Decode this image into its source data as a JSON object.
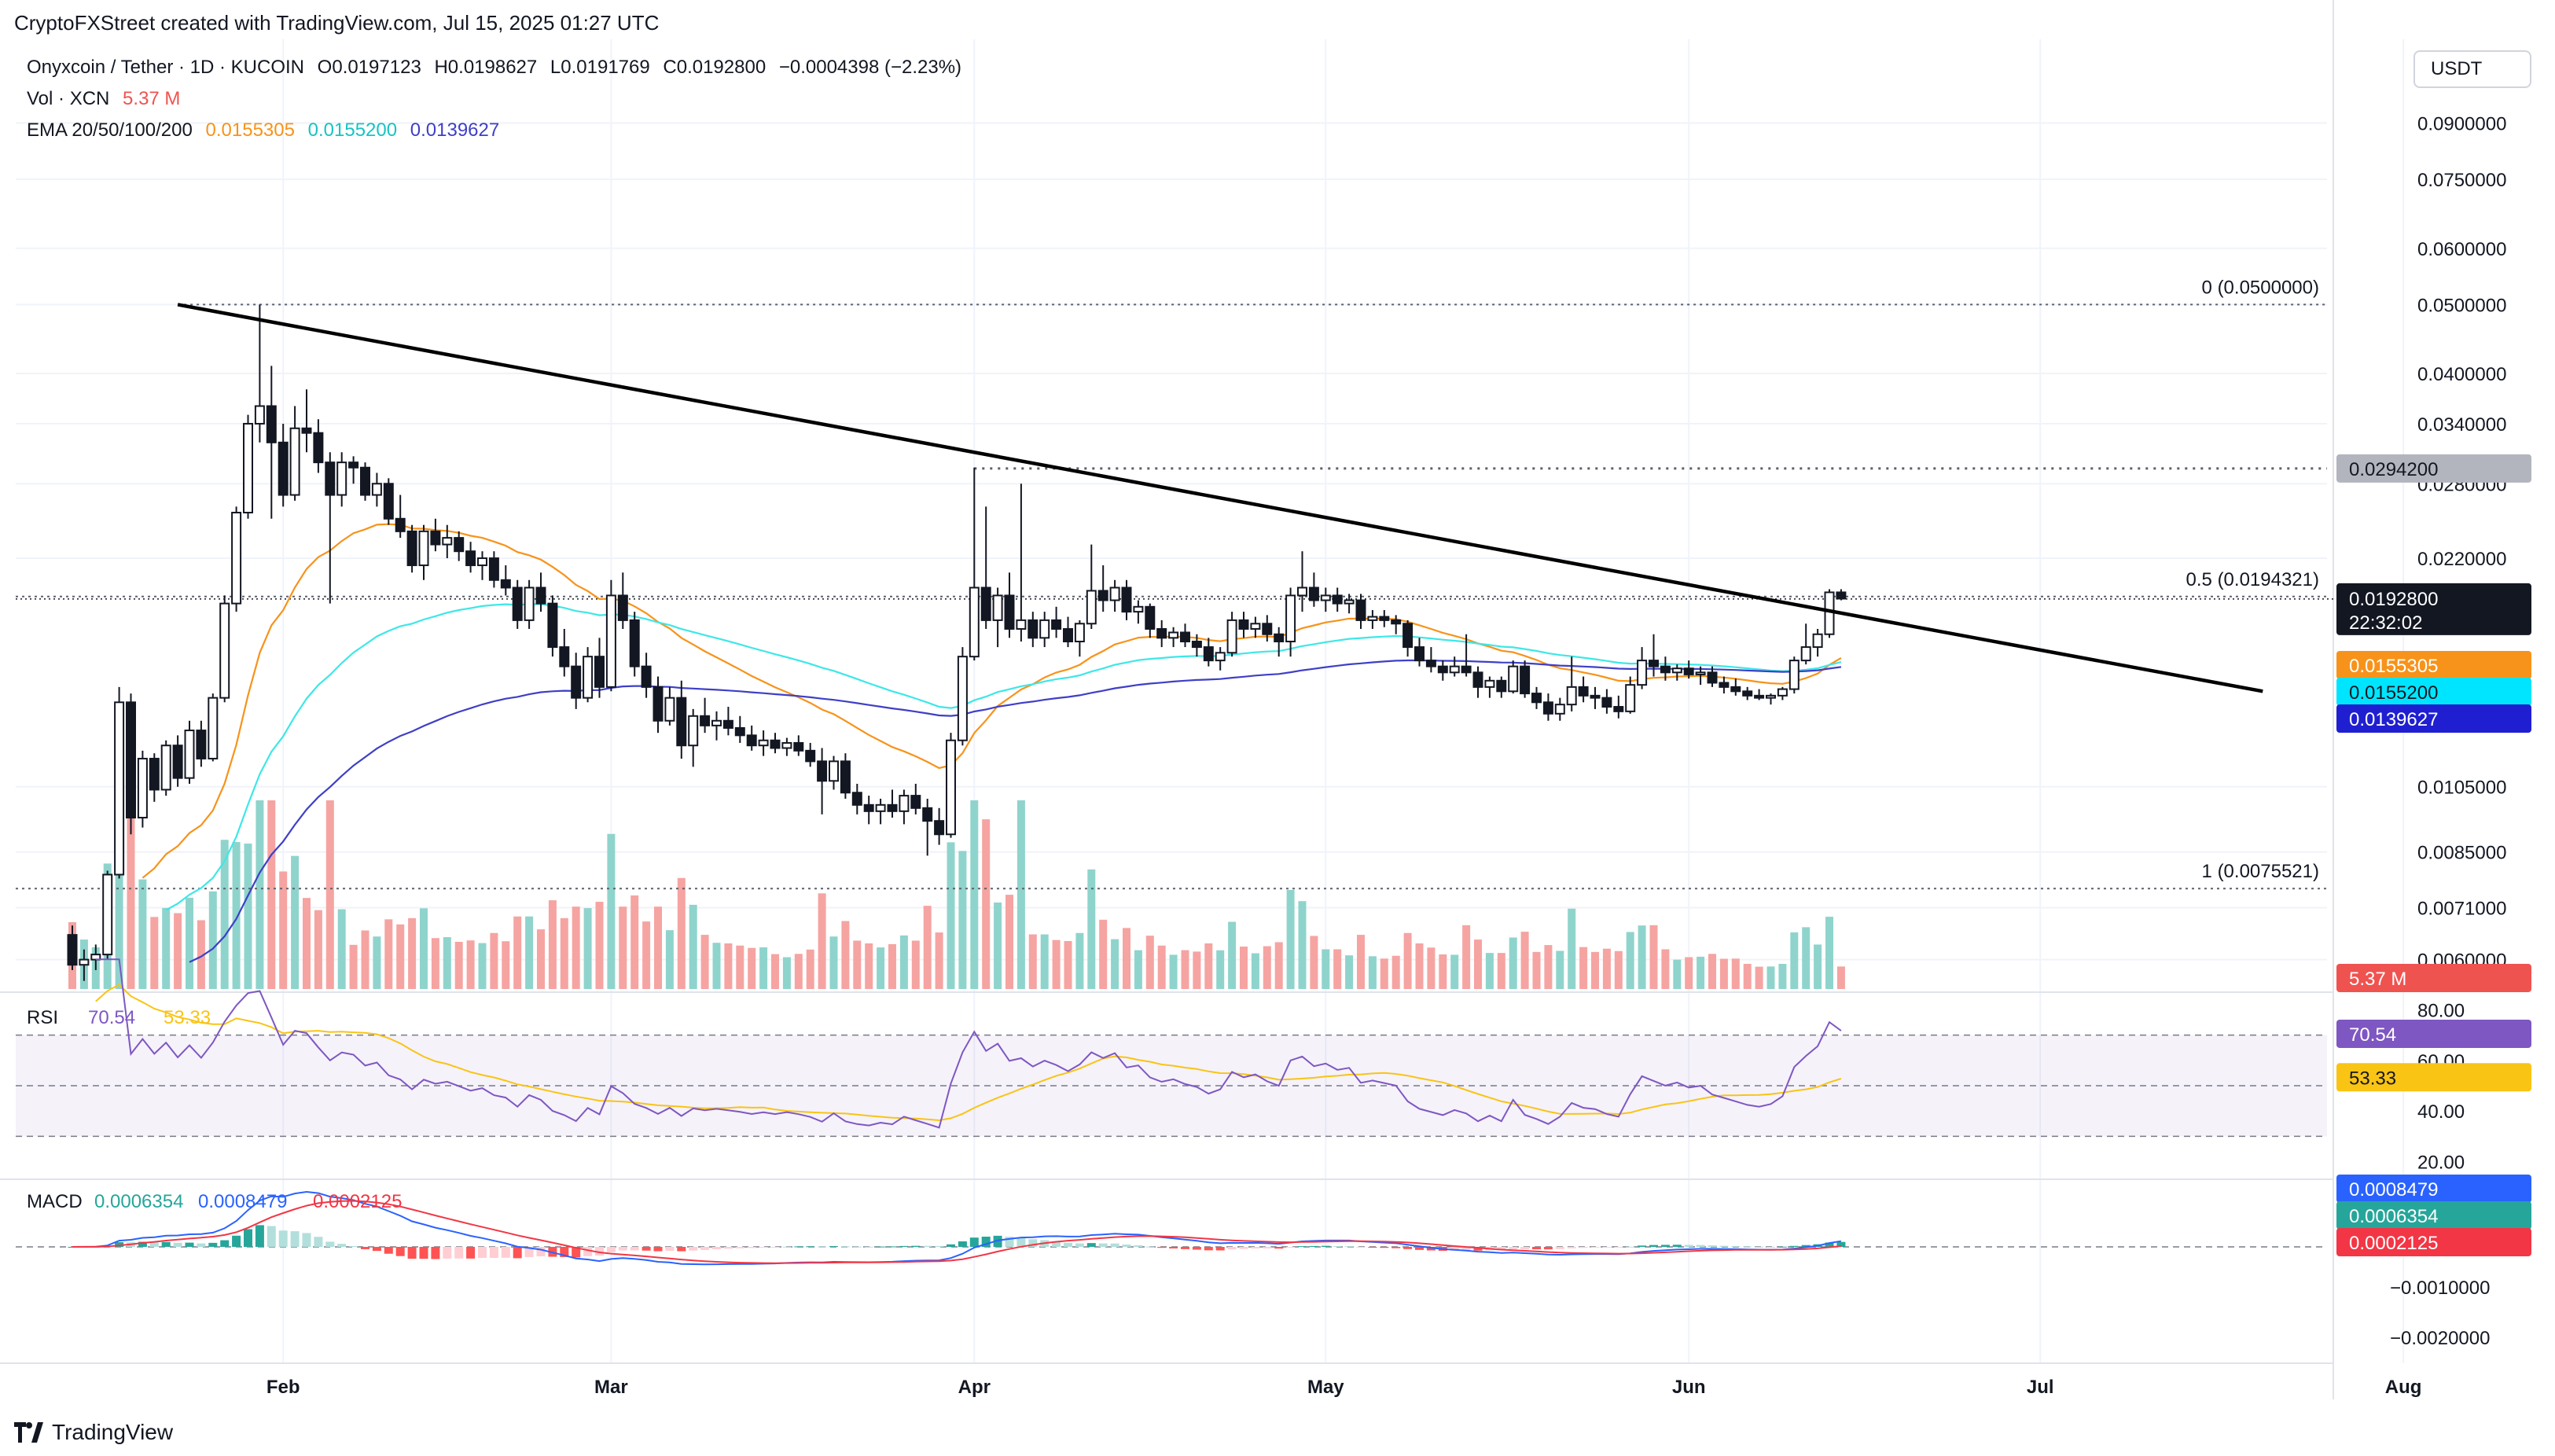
{
  "header": {
    "credit": "CryptoFXStreet created with TradingView.com, Jul 15, 2025 01:27 UTC",
    "currency_button": "USDT"
  },
  "legend": {
    "symbol": "Onyxcoin / Tether · 1D · KUCOIN",
    "open": "O0.0197123",
    "high": "H0.0198627",
    "low": "L0.0191769",
    "close": "C0.0192800",
    "change": "−0.0004398 (−2.23%)",
    "vol_label": "Vol · XCN",
    "vol_value": "5.37 M",
    "ema_label": "EMA 20/50/100/200",
    "ema20": "0.0155305",
    "ema50": "0.0155200",
    "ema100": "0.0139627"
  },
  "footer": {
    "brand": "TradingView"
  },
  "colors": {
    "up": "#26a69a",
    "down": "#ef5350",
    "ema20": "#f7931a",
    "ema50": "#3ee7e7",
    "ema100": "#3f3fc6",
    "rsi": "#7e57c2",
    "rsi_ma": "#f9c414",
    "macd": "#2962ff",
    "signal": "#f23645",
    "trendline": "#000000"
  },
  "chart_data": {
    "type": "candlestick",
    "title": "Onyxcoin / Tether · 1D · KUCOIN",
    "y_scale": "log",
    "x_ticks": [
      "Feb",
      "Mar",
      "Apr",
      "May",
      "Jun",
      "Jul",
      "Aug"
    ],
    "price_axis_ticks": [
      "0.0900000",
      "0.0750000",
      "0.0600000",
      "0.0500000",
      "0.0400000",
      "0.0340000",
      "0.0280000",
      "0.0220000",
      "0.0105000",
      "0.0085000",
      "0.0071000",
      "0.0060000"
    ],
    "price_axis_badges": {
      "resistance": "0.0294200",
      "last_price": "0.0192800",
      "countdown": "22:32:02",
      "ema20": "0.0155305",
      "ema50": "0.0155200",
      "ema100": "0.0139627",
      "volume": "5.37 M"
    },
    "fibonacci": [
      {
        "label": "0 (0.0500000)",
        "level": 0.05
      },
      {
        "label": "0.5 (0.0194321)",
        "level": 0.0194321
      },
      {
        "label": "1 (0.0075521)",
        "level": 0.0075521
      }
    ],
    "resistance_level": 0.02942,
    "trendline": {
      "start": [
        "Jan 23",
        0.05
      ],
      "end": [
        "Jul 20",
        0.0143
      ]
    },
    "candles_start": "Jan 14",
    "candles": [
      [
        0.0065,
        0.0067,
        0.0058,
        0.0059
      ],
      [
        0.0059,
        0.0062,
        0.0056,
        0.006
      ],
      [
        0.006,
        0.0063,
        0.0058,
        0.0061
      ],
      [
        0.0061,
        0.008,
        0.006,
        0.0079
      ],
      [
        0.0079,
        0.0145,
        0.0078,
        0.0138
      ],
      [
        0.0138,
        0.0142,
        0.009,
        0.0095
      ],
      [
        0.0095,
        0.0118,
        0.0092,
        0.0115
      ],
      [
        0.0115,
        0.0117,
        0.01,
        0.0104
      ],
      [
        0.0104,
        0.0122,
        0.0102,
        0.012
      ],
      [
        0.012,
        0.0124,
        0.0105,
        0.0108
      ],
      [
        0.0108,
        0.013,
        0.0106,
        0.0126
      ],
      [
        0.0126,
        0.013,
        0.0112,
        0.0115
      ],
      [
        0.0115,
        0.0142,
        0.0114,
        0.014
      ],
      [
        0.014,
        0.0195,
        0.0138,
        0.019
      ],
      [
        0.019,
        0.026,
        0.0185,
        0.0255
      ],
      [
        0.0255,
        0.035,
        0.025,
        0.034
      ],
      [
        0.034,
        0.05,
        0.032,
        0.036
      ],
      [
        0.036,
        0.041,
        0.025,
        0.032
      ],
      [
        0.032,
        0.034,
        0.026,
        0.027
      ],
      [
        0.027,
        0.036,
        0.0265,
        0.0335
      ],
      [
        0.0335,
        0.038,
        0.031,
        0.033
      ],
      [
        0.033,
        0.0345,
        0.029,
        0.03
      ],
      [
        0.03,
        0.031,
        0.019,
        0.027
      ],
      [
        0.027,
        0.031,
        0.026,
        0.03
      ],
      [
        0.03,
        0.0306,
        0.028,
        0.0295
      ],
      [
        0.0295,
        0.03,
        0.0265,
        0.027
      ],
      [
        0.027,
        0.029,
        0.026,
        0.028
      ],
      [
        0.028,
        0.0285,
        0.0245,
        0.025
      ],
      [
        0.025,
        0.027,
        0.0235,
        0.024
      ],
      [
        0.024,
        0.0245,
        0.021,
        0.0215
      ],
      [
        0.0215,
        0.0245,
        0.0205,
        0.024
      ],
      [
        0.024,
        0.025,
        0.0225,
        0.023
      ],
      [
        0.023,
        0.0245,
        0.022,
        0.0235
      ],
      [
        0.0235,
        0.024,
        0.0218,
        0.0225
      ],
      [
        0.0225,
        0.0232,
        0.021,
        0.0215
      ],
      [
        0.0215,
        0.0225,
        0.0205,
        0.022
      ],
      [
        0.022,
        0.0225,
        0.02,
        0.0205
      ],
      [
        0.0205,
        0.0215,
        0.0195,
        0.02
      ],
      [
        0.02,
        0.0205,
        0.0175,
        0.018
      ],
      [
        0.018,
        0.0205,
        0.0175,
        0.02
      ],
      [
        0.02,
        0.021,
        0.0185,
        0.019
      ],
      [
        0.019,
        0.0195,
        0.016,
        0.0165
      ],
      [
        0.0165,
        0.0175,
        0.015,
        0.0155
      ],
      [
        0.0155,
        0.0162,
        0.0135,
        0.014
      ],
      [
        0.014,
        0.0165,
        0.0138,
        0.016
      ],
      [
        0.016,
        0.017,
        0.014,
        0.0145
      ],
      [
        0.0145,
        0.0205,
        0.0143,
        0.0195
      ],
      [
        0.0195,
        0.021,
        0.0175,
        0.018
      ],
      [
        0.018,
        0.0185,
        0.015,
        0.0155
      ],
      [
        0.0155,
        0.0162,
        0.014,
        0.0145
      ],
      [
        0.0145,
        0.015,
        0.0125,
        0.013
      ],
      [
        0.013,
        0.0145,
        0.0128,
        0.014
      ],
      [
        0.014,
        0.0148,
        0.0115,
        0.012
      ],
      [
        0.012,
        0.0135,
        0.0112,
        0.0132
      ],
      [
        0.0132,
        0.014,
        0.0125,
        0.0128
      ],
      [
        0.0128,
        0.0134,
        0.0122,
        0.013
      ],
      [
        0.013,
        0.0136,
        0.0124,
        0.0127
      ],
      [
        0.0127,
        0.0132,
        0.0121,
        0.0124
      ],
      [
        0.0124,
        0.0128,
        0.0118,
        0.012
      ],
      [
        0.012,
        0.0126,
        0.0116,
        0.0122
      ],
      [
        0.0122,
        0.0125,
        0.0117,
        0.0119
      ],
      [
        0.0119,
        0.0123,
        0.0116,
        0.0121
      ],
      [
        0.0121,
        0.0124,
        0.0116,
        0.0118
      ],
      [
        0.0118,
        0.0121,
        0.0112,
        0.0114
      ],
      [
        0.0114,
        0.0119,
        0.0096,
        0.0107
      ],
      [
        0.0107,
        0.0116,
        0.0104,
        0.0114
      ],
      [
        0.0114,
        0.0117,
        0.0101,
        0.0103
      ],
      [
        0.0103,
        0.0106,
        0.0096,
        0.0099
      ],
      [
        0.0099,
        0.0102,
        0.0093,
        0.0097
      ],
      [
        0.0097,
        0.0101,
        0.0093,
        0.0099
      ],
      [
        0.0099,
        0.0104,
        0.0095,
        0.0097
      ],
      [
        0.0097,
        0.0104,
        0.0093,
        0.0102
      ],
      [
        0.0102,
        0.0106,
        0.0096,
        0.0098
      ],
      [
        0.0098,
        0.0101,
        0.0084,
        0.0094
      ],
      [
        0.0094,
        0.0098,
        0.0087,
        0.009
      ],
      [
        0.009,
        0.0125,
        0.0089,
        0.0122
      ],
      [
        0.0122,
        0.0165,
        0.012,
        0.016
      ],
      [
        0.016,
        0.0295,
        0.0158,
        0.02
      ],
      [
        0.02,
        0.026,
        0.0175,
        0.018
      ],
      [
        0.018,
        0.02,
        0.0165,
        0.0195
      ],
      [
        0.0195,
        0.021,
        0.017,
        0.0175
      ],
      [
        0.0175,
        0.028,
        0.0168,
        0.018
      ],
      [
        0.018,
        0.0185,
        0.0165,
        0.017
      ],
      [
        0.017,
        0.0185,
        0.0165,
        0.018
      ],
      [
        0.018,
        0.0188,
        0.017,
        0.0175
      ],
      [
        0.0175,
        0.0182,
        0.0165,
        0.0168
      ],
      [
        0.0168,
        0.018,
        0.016,
        0.0178
      ],
      [
        0.0178,
        0.023,
        0.0175,
        0.0198
      ],
      [
        0.0198,
        0.0215,
        0.0185,
        0.0192
      ],
      [
        0.0192,
        0.0205,
        0.0185,
        0.02
      ],
      [
        0.02,
        0.0205,
        0.018,
        0.0185
      ],
      [
        0.0185,
        0.0192,
        0.0178,
        0.0188
      ],
      [
        0.0188,
        0.019,
        0.017,
        0.0175
      ],
      [
        0.0175,
        0.018,
        0.0165,
        0.017
      ],
      [
        0.017,
        0.0176,
        0.0165,
        0.0173
      ],
      [
        0.0173,
        0.0178,
        0.0165,
        0.0168
      ],
      [
        0.0168,
        0.0172,
        0.016,
        0.0165
      ],
      [
        0.0165,
        0.017,
        0.0155,
        0.0158
      ],
      [
        0.0158,
        0.0165,
        0.0153,
        0.0162
      ],
      [
        0.0162,
        0.0185,
        0.016,
        0.018
      ],
      [
        0.018,
        0.0185,
        0.017,
        0.0175
      ],
      [
        0.0175,
        0.0182,
        0.017,
        0.0178
      ],
      [
        0.0178,
        0.0183,
        0.0168,
        0.0172
      ],
      [
        0.0172,
        0.0176,
        0.016,
        0.0168
      ],
      [
        0.0168,
        0.02,
        0.016,
        0.0195
      ],
      [
        0.0195,
        0.0225,
        0.0185,
        0.02
      ],
      [
        0.02,
        0.021,
        0.0188,
        0.0192
      ],
      [
        0.0192,
        0.02,
        0.0185,
        0.0195
      ],
      [
        0.0195,
        0.02,
        0.0185,
        0.019
      ],
      [
        0.019,
        0.0196,
        0.0184,
        0.0192
      ],
      [
        0.0192,
        0.0196,
        0.0175,
        0.018
      ],
      [
        0.018,
        0.0186,
        0.0175,
        0.0182
      ],
      [
        0.0182,
        0.0186,
        0.0176,
        0.018
      ],
      [
        0.018,
        0.0183,
        0.0172,
        0.0178
      ],
      [
        0.0178,
        0.018,
        0.016,
        0.0165
      ],
      [
        0.0165,
        0.017,
        0.0155,
        0.0158
      ],
      [
        0.0158,
        0.0165,
        0.0152,
        0.0155
      ],
      [
        0.0155,
        0.0158,
        0.0148,
        0.0152
      ],
      [
        0.0152,
        0.016,
        0.015,
        0.0155
      ],
      [
        0.0155,
        0.0172,
        0.015,
        0.0152
      ],
      [
        0.0152,
        0.0155,
        0.014,
        0.0145
      ],
      [
        0.0145,
        0.015,
        0.014,
        0.0148
      ],
      [
        0.0148,
        0.015,
        0.014,
        0.0143
      ],
      [
        0.0143,
        0.0158,
        0.0142,
        0.0155
      ],
      [
        0.0155,
        0.0158,
        0.014,
        0.0142
      ],
      [
        0.0142,
        0.0145,
        0.0135,
        0.0138
      ],
      [
        0.0138,
        0.0142,
        0.013,
        0.0133
      ],
      [
        0.0133,
        0.014,
        0.013,
        0.0137
      ],
      [
        0.0137,
        0.016,
        0.0134,
        0.0145
      ],
      [
        0.0145,
        0.015,
        0.0138,
        0.0141
      ],
      [
        0.0141,
        0.0145,
        0.0135,
        0.014
      ],
      [
        0.014,
        0.0144,
        0.0133,
        0.0136
      ],
      [
        0.0136,
        0.0141,
        0.0131,
        0.0134
      ],
      [
        0.0134,
        0.015,
        0.0133,
        0.0146
      ],
      [
        0.0146,
        0.0165,
        0.0144,
        0.0158
      ],
      [
        0.0158,
        0.0172,
        0.015,
        0.0155
      ],
      [
        0.0155,
        0.016,
        0.0148,
        0.0152
      ],
      [
        0.0152,
        0.0156,
        0.0148,
        0.0154
      ],
      [
        0.0154,
        0.0158,
        0.0149,
        0.0151
      ],
      [
        0.0151,
        0.0155,
        0.0146,
        0.0152
      ],
      [
        0.0152,
        0.0155,
        0.0145,
        0.0147
      ],
      [
        0.0147,
        0.015,
        0.0142,
        0.0145
      ],
      [
        0.0145,
        0.0149,
        0.0141,
        0.0143
      ],
      [
        0.0143,
        0.0145,
        0.0139,
        0.0141
      ],
      [
        0.0141,
        0.0144,
        0.0139,
        0.014
      ],
      [
        0.014,
        0.0142,
        0.0137,
        0.0141
      ],
      [
        0.0141,
        0.0145,
        0.0139,
        0.0144
      ],
      [
        0.0144,
        0.016,
        0.0142,
        0.0158
      ],
      [
        0.0158,
        0.0178,
        0.0156,
        0.0165
      ],
      [
        0.0165,
        0.0175,
        0.016,
        0.0172
      ],
      [
        0.0172,
        0.0199,
        0.017,
        0.0197
      ],
      [
        0.0197,
        0.0199,
        0.0192,
        0.0193
      ]
    ],
    "volume_axis_badge": "5.37 M",
    "rsi": {
      "label": "RSI",
      "value": "70.54",
      "ma_value": "53.33",
      "axis_ticks": [
        "80.00",
        "60.00",
        "40.00",
        "20.00"
      ],
      "upper_band": 70,
      "middle_band": 50,
      "lower_band": 30
    },
    "macd": {
      "label": "MACD",
      "histogram": "0.0006354",
      "macd_line": "0.0008479",
      "signal_line": "0.0002125",
      "axis_ticks": [
        "−0.0010000",
        "−0.0020000"
      ]
    }
  }
}
